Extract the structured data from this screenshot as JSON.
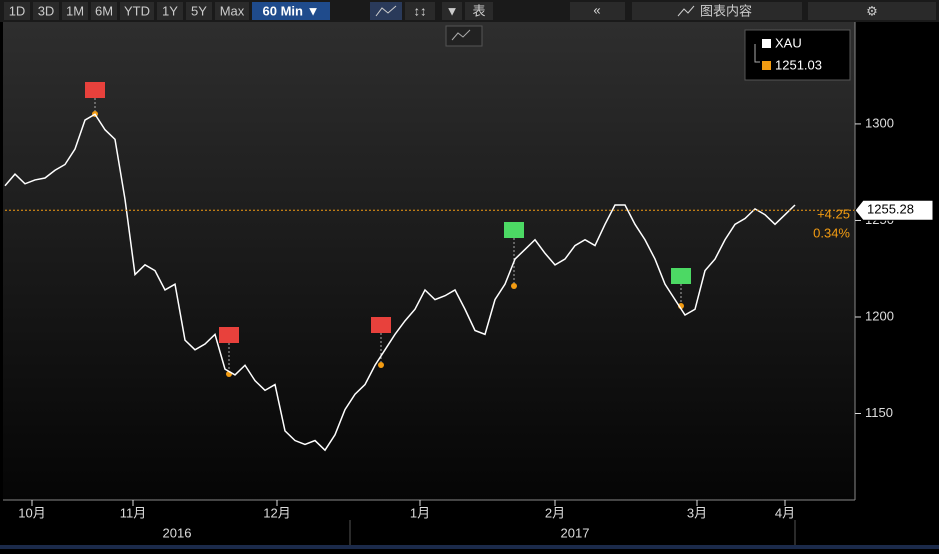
{
  "toolbar": {
    "ranges": [
      "1D",
      "3D",
      "1M",
      "6M",
      "YTD",
      "1Y",
      "5Y",
      "Max"
    ],
    "interval": "60 Min ▼",
    "table": "表",
    "collapse": "«",
    "chart_content": "图表内容"
  },
  "year_labels": [
    "2016",
    "2017"
  ],
  "chart_data": {
    "type": "line",
    "series": [
      {
        "name": "XAU",
        "color": "#ffffff",
        "values": [
          1268,
          1274,
          1269,
          1271,
          1272,
          1276,
          1279,
          1287,
          1302,
          1305,
          1297,
          1292,
          1261,
          1222,
          1227,
          1224,
          1214,
          1217,
          1188,
          1183,
          1186,
          1191,
          1173,
          1170,
          1175,
          1167,
          1162,
          1165,
          1141,
          1136,
          1134,
          1136,
          1131,
          1139,
          1152,
          1160,
          1165,
          1175,
          1183,
          1191,
          1198,
          1204,
          1214,
          1209,
          1211,
          1214,
          1204,
          1193,
          1191,
          1209,
          1217,
          1230,
          1235,
          1240,
          1233,
          1227,
          1230,
          1237,
          1240,
          1237,
          1248,
          1258,
          1258,
          1248,
          1240,
          1230,
          1217,
          1209,
          1201,
          1204,
          1224,
          1230,
          1240,
          1248,
          1251,
          1256,
          1253,
          1248,
          1253,
          1258
        ]
      }
    ],
    "legend_value": "1251.03",
    "reference_line": {
      "value": 1255.28,
      "label": "1255.28",
      "color": "#f39c12"
    },
    "annotations": [
      "+4.25",
      "0.34%"
    ],
    "xlim": [
      0,
      85
    ],
    "xticks": [
      {
        "value": 2.7,
        "label": "10月"
      },
      {
        "value": 12.8,
        "label": "11月"
      },
      {
        "value": 27.2,
        "label": "12月"
      },
      {
        "value": 41.5,
        "label": "1月"
      },
      {
        "value": 55,
        "label": "2月"
      },
      {
        "value": 69.2,
        "label": "3月"
      },
      {
        "value": 78,
        "label": "4月"
      }
    ],
    "ylim": [
      1105.2,
      1352.8
    ],
    "yticks": [
      1150,
      1200,
      1250,
      1300
    ]
  }
}
